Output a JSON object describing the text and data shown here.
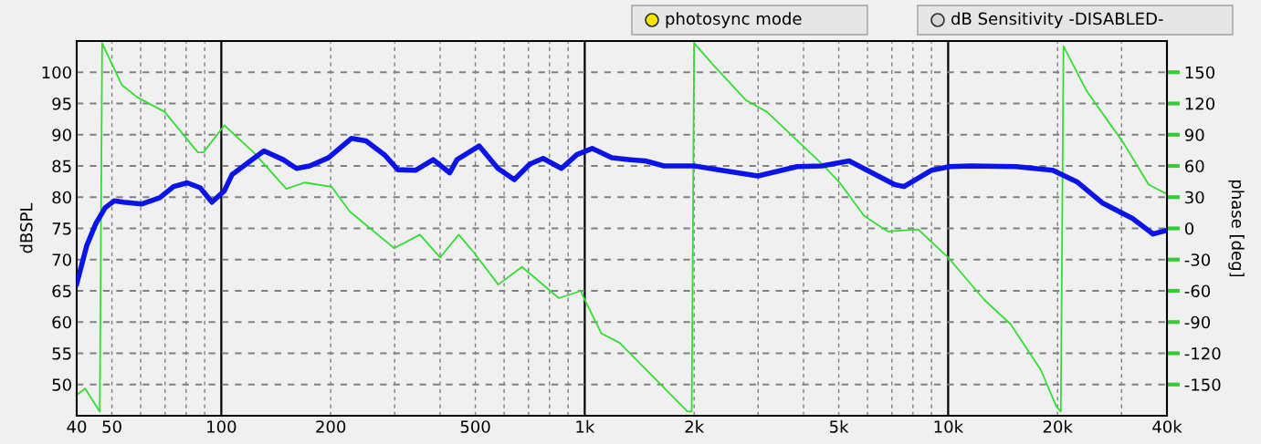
{
  "chart_data": {
    "type": "line",
    "xlabel": null,
    "ylabel": "dBSPL",
    "y2label": "phase [deg]",
    "log": "x",
    "grid": true,
    "legend": false,
    "annotations": [
      "photosync mode",
      "dB Sensitivity -DISABLED-"
    ],
    "xlim": [
      40,
      40000
    ],
    "ylim": [
      45,
      105
    ],
    "y2lim": [
      -180,
      180
    ],
    "xticks": [
      40,
      50,
      {
        "value": 60,
        "label": null
      },
      {
        "value": 70,
        "label": null
      },
      {
        "value": 80,
        "label": null
      },
      {
        "value": 90,
        "label": null
      },
      100,
      200,
      {
        "value": 300,
        "label": null
      },
      {
        "value": 400,
        "label": null
      },
      500,
      {
        "value": 600,
        "label": null
      },
      {
        "value": 700,
        "label": null
      },
      {
        "value": 800,
        "label": null
      },
      {
        "value": 900,
        "label": null
      },
      {
        "value": 1000,
        "label": "1k"
      },
      {
        "value": 2000,
        "label": "2k"
      },
      {
        "value": 3000,
        "label": null
      },
      {
        "value": 4000,
        "label": null
      },
      {
        "value": 5000,
        "label": "5k"
      },
      {
        "value": 6000,
        "label": null
      },
      {
        "value": 7000,
        "label": null
      },
      {
        "value": 8000,
        "label": null
      },
      {
        "value": 9000,
        "label": null
      },
      {
        "value": 10000,
        "label": "10k"
      },
      {
        "value": 20000,
        "label": "20k"
      },
      {
        "value": 30000,
        "label": null
      },
      {
        "value": 40000,
        "label": "40k"
      }
    ],
    "yticks": [
      50,
      55,
      60,
      65,
      70,
      75,
      80,
      85,
      90,
      95,
      100
    ],
    "y2ticks": [
      -150,
      -120,
      -90,
      -60,
      -30,
      0,
      30,
      60,
      90,
      120,
      150
    ],
    "series": [
      {
        "color": "#0a14e6",
        "x": [
          40,
          42.6,
          45.1,
          47.9,
          50.7,
          53.8,
          60.3,
          67.7,
          73.9,
          80.6,
          87.5,
          94.2,
          101.9,
          107,
          117,
          131,
          148,
          161,
          175,
          197,
          228,
          250,
          281,
          306,
          342,
          383,
          425,
          445,
          512,
          577,
          640,
          706,
          768,
          863,
          951,
          1048,
          1187,
          1336,
          1469,
          1651,
          2000,
          2377,
          2995,
          3840,
          4490,
          5340,
          7130,
          7560,
          8990,
          10090,
          11540,
          15390,
          19400,
          22700,
          26540,
          32130,
          36640,
          40000
        ],
        "values": [
          66.1,
          72.2,
          75.7,
          78.3,
          79.4,
          79.2,
          78.9,
          79.9,
          81.7,
          82.3,
          81.5,
          79.2,
          81.0,
          83.6,
          85.3,
          87.4,
          86.0,
          84.6,
          85.0,
          86.3,
          89.4,
          89.0,
          86.8,
          84.4,
          84.3,
          86.0,
          83.9,
          86.0,
          88.2,
          84.6,
          82.8,
          85.3,
          86.2,
          84.6,
          86.8,
          87.8,
          86.3,
          86.0,
          85.8,
          85.0,
          85.0,
          84.3,
          83.4,
          84.9,
          85.0,
          85.8,
          82.0,
          81.7,
          84.3,
          84.9,
          85.0,
          84.9,
          84.3,
          82.4,
          79.1,
          76.6,
          74.1,
          74.7
        ]
      },
      {
        "color": "#33dd33",
        "axis": "y2",
        "x": [
          40,
          42.2,
          46.3,
          47.0,
          53.2,
          58.7,
          69.8,
          86.2,
          89.3,
          101.9,
          122.7,
          151,
          169.6,
          201,
          226,
          299,
          352,
          400,
          450,
          495,
          578,
          672,
          849,
          976,
          992,
          1112,
          1248,
          1918,
          1970,
          2000,
          2245,
          2780,
          3170,
          4490,
          5030,
          5870,
          6830,
          8270,
          10000,
          12600,
          14850,
          17990,
          19840,
          20420,
          20770,
          24050,
          30380,
          35620,
          40000
        ],
        "values": [
          -160,
          -154,
          -176,
          178,
          138,
          126,
          112,
          73,
          73,
          99,
          73,
          38,
          44,
          40,
          16,
          -19,
          -6,
          -28,
          -6,
          -23,
          -54,
          -37,
          -67,
          -60,
          -66,
          -101,
          -110,
          -176,
          -176,
          178,
          158,
          123,
          112,
          62,
          44,
          12,
          -3,
          -1,
          -28,
          -69,
          -92,
          -136,
          -171,
          -176,
          175,
          132,
          82,
          42,
          33
        ]
      }
    ]
  }
}
